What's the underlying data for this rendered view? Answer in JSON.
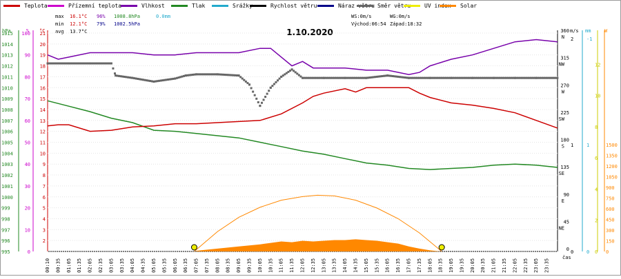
{
  "chart_data": {
    "type": "line",
    "title": "1.10.2020",
    "legend": [
      {
        "label": "Teplota",
        "color": "#cc0000"
      },
      {
        "label": "Přízemní teplota",
        "color": "#cc00cc"
      },
      {
        "label": "Vlhkost",
        "color": "#7700aa"
      },
      {
        "label": "Tlak",
        "color": "#228822"
      },
      {
        "label": "Srážky",
        "color": "#22aacc"
      },
      {
        "label": "Rychlost větru",
        "color": "#000000"
      },
      {
        "label": "Náraz větru",
        "color": "#000088"
      },
      {
        "label": "Směr větru",
        "color": "#666666"
      },
      {
        "label": "UV index",
        "color": "#eeee00"
      },
      {
        "label": "Solar",
        "color": "#ff8800"
      }
    ],
    "stats": {
      "max_label": "max",
      "min_label": "min",
      "avg_label": "avg",
      "max_temp": "16.1°C",
      "max_hum": "96%",
      "max_press": "1008.8hPa",
      "max_rain": "0.0mm",
      "min_temp": "12.1°C",
      "min_hum": "79%",
      "min_press": "1002.5hPa",
      "avg_temp": "13.7°C"
    },
    "wind_info": {
      "ws": "WS:0m/s",
      "wg": "WG:0m/s",
      "sunrise": "Východ:06:54",
      "sunset": "Západ:18:32"
    },
    "axes_units": {
      "pressure": "hPa",
      "humidity": "%",
      "temperature": "°C",
      "wind_speed": "m/s",
      "rain": "mm",
      "solar": "W",
      "time": "čas"
    },
    "y_axis_pressure": {
      "ticks": [
        1015,
        1014,
        1013,
        1012,
        1011,
        1010,
        1009,
        1008,
        1007,
        1006,
        1005,
        1004,
        1003,
        1002,
        1001,
        1000,
        999,
        998,
        997,
        996,
        995
      ],
      "ylim": [
        995,
        1015
      ]
    },
    "y_axis_humidity": {
      "ticks": [
        100,
        90,
        80,
        70,
        60,
        50,
        40,
        30,
        20,
        10,
        0
      ],
      "ylim": [
        0,
        100
      ]
    },
    "y_axis_temperature": {
      "ticks": [
        21,
        20,
        19,
        18,
        17,
        16,
        15,
        14,
        13,
        12,
        11,
        10,
        9,
        8,
        7,
        6,
        5,
        4,
        3,
        2
      ],
      "ylim": [
        1,
        21
      ]
    },
    "y_axis_direction": {
      "ticks": [
        "360",
        "315",
        "270",
        "225",
        "180",
        "135",
        "90",
        "45",
        "0"
      ],
      "labels": [
        "N",
        "NW",
        "W",
        "SW",
        "S",
        "SE",
        "E",
        "NE",
        ""
      ]
    },
    "y_axis_wind": {
      "ticks": [
        "2",
        "1",
        "0"
      ]
    },
    "y_axis_rain": {
      "ticks": [
        "-1",
        "1",
        "0"
      ]
    },
    "y_axis_uv": {
      "ticks": [
        "12",
        "10",
        "8",
        "6",
        "4",
        "2",
        "0"
      ]
    },
    "y_axis_solar": {
      "ticks": [
        "1500",
        "1350",
        "1200",
        "1050",
        "900",
        "750",
        "600",
        "450",
        "300",
        "150",
        "0"
      ]
    },
    "x_labels": [
      "00:10",
      "00:35",
      "01:05",
      "01:35",
      "02:05",
      "02:35",
      "03:05",
      "03:35",
      "04:05",
      "04:35",
      "05:05",
      "05:35",
      "06:05",
      "06:35",
      "07:05",
      "07:35",
      "08:05",
      "08:35",
      "09:05",
      "09:35",
      "10:05",
      "10:35",
      "11:05",
      "11:35",
      "12:05",
      "12:35",
      "13:05",
      "13:35",
      "14:05",
      "14:35",
      "15:05",
      "15:35",
      "16:05",
      "16:35",
      "17:05",
      "17:35",
      "18:05",
      "18:35",
      "19:05",
      "19:35",
      "20:05",
      "20:35",
      "21:05",
      "21:35",
      "22:05",
      "22:35",
      "23:05",
      "23:35"
    ],
    "series": [
      {
        "name": "Teplota",
        "unit": "°C",
        "x": [
          0,
          0.5,
          1,
          2,
          3,
          4,
          5,
          6,
          7,
          8,
          9,
          10,
          11,
          12,
          12.5,
          13,
          14,
          14.5,
          15,
          16,
          17,
          17.5,
          18,
          19,
          20,
          21,
          22,
          23,
          24
        ],
        "values": [
          12.5,
          12.6,
          12.6,
          12.0,
          12.1,
          12.4,
          12.5,
          12.7,
          12.7,
          12.8,
          12.9,
          13.0,
          13.6,
          14.6,
          15.2,
          15.5,
          15.9,
          15.6,
          16.0,
          16.0,
          16.0,
          15.5,
          15.1,
          14.6,
          14.4,
          14.1,
          13.7,
          13.0,
          12.3
        ]
      },
      {
        "name": "Vlhkost",
        "unit": "%",
        "x": [
          0,
          0.5,
          1,
          2,
          3,
          4,
          5,
          6,
          7,
          8,
          9,
          10,
          10.5,
          11,
          11.5,
          12,
          12.5,
          13,
          14,
          15,
          16,
          17,
          17.5,
          18,
          19,
          20,
          21,
          22,
          23,
          24
        ],
        "values": [
          90,
          88,
          89,
          91,
          91,
          91,
          90,
          90,
          91,
          91,
          91,
          93,
          93,
          89,
          85,
          87,
          84,
          84,
          84,
          83,
          83,
          81,
          82,
          85,
          88,
          90,
          93,
          96,
          97,
          96
        ]
      },
      {
        "name": "Tlak",
        "unit": "hPa",
        "x": [
          0,
          1,
          2,
          3,
          4,
          5,
          6,
          7,
          8,
          9,
          10,
          11,
          12,
          13,
          14,
          15,
          16,
          17,
          18,
          19,
          20,
          21,
          22,
          23,
          24
        ],
        "values": [
          1008.8,
          1008.3,
          1007.8,
          1007.2,
          1006.8,
          1006.1,
          1006.0,
          1005.8,
          1005.6,
          1005.4,
          1005.0,
          1004.6,
          1004.2,
          1003.9,
          1003.5,
          1003.1,
          1002.9,
          1002.6,
          1002.5,
          1002.6,
          1002.7,
          1002.9,
          1003.0,
          1002.9,
          1002.7
        ]
      },
      {
        "name": "Směr větru",
        "unit": "°",
        "x": [
          0,
          1,
          2,
          3,
          3.2,
          4,
          5,
          6,
          6.5,
          7,
          8,
          9,
          9.5,
          10,
          10.5,
          11,
          11.5,
          12,
          13,
          14,
          15,
          16,
          17,
          18,
          19,
          20,
          21,
          22,
          23,
          24
        ],
        "values": [
          310,
          310,
          310,
          310,
          290,
          286,
          280,
          285,
          290,
          292,
          292,
          290,
          275,
          240,
          270,
          288,
          300,
          286,
          286,
          286,
          286,
          290,
          286,
          286,
          286,
          286,
          286,
          286,
          286,
          286
        ]
      },
      {
        "name": "Solar",
        "unit": "W",
        "x": [
          7.0,
          8.0,
          9.0,
          10.0,
          10.5,
          11.0,
          11.5,
          12.0,
          12.5,
          13.0,
          13.5,
          14.0,
          14.5,
          15.0,
          15.5,
          16.0,
          16.5,
          17.0,
          17.5,
          18.0,
          18.5
        ],
        "values": [
          10,
          40,
          70,
          100,
          120,
          140,
          130,
          150,
          140,
          150,
          160,
          160,
          170,
          160,
          150,
          130,
          110,
          70,
          40,
          15,
          0
        ]
      },
      {
        "name": "Solar max",
        "unit": "W",
        "x": [
          6.9,
          8,
          9,
          10,
          11,
          12,
          12.7,
          13.5,
          14.5,
          15.5,
          16.5,
          17.5,
          18.55
        ],
        "values": [
          0,
          280,
          480,
          620,
          720,
          770,
          790,
          780,
          720,
          610,
          460,
          260,
          0
        ]
      }
    ]
  }
}
